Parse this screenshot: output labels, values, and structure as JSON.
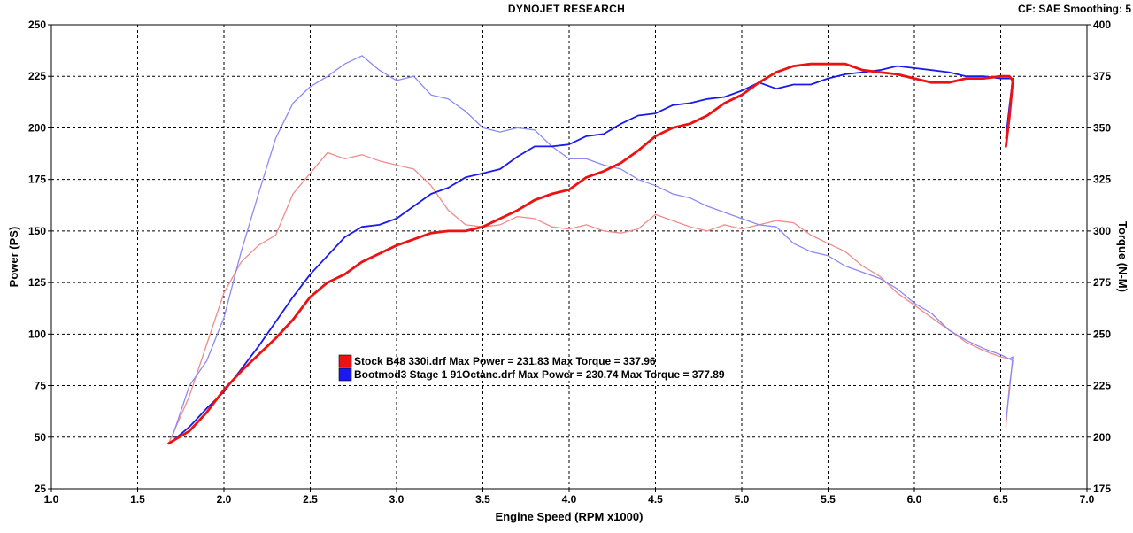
{
  "header": {
    "title": "DYNOJET RESEARCH",
    "info": "CF: SAE  Smoothing: 5"
  },
  "colors": {
    "stock": "#ee1111",
    "stock_light": "#f28a8a",
    "bootmod": "#1a1aee",
    "bootmod_light": "#8a8af4",
    "grid": "#000000"
  },
  "chart_data": {
    "type": "line",
    "title": "DYNOJET RESEARCH",
    "xlabel": "Engine Speed (RPM x1000)",
    "ylabel": "Power (PS)",
    "y2label": "Torque (N-M)",
    "xlim": [
      1.0,
      7.0
    ],
    "ylim": [
      25,
      250
    ],
    "y2lim": [
      175,
      400
    ],
    "x_ticks": [
      "1.0",
      "1.5",
      "2.0",
      "2.5",
      "3.0",
      "3.5",
      "4.0",
      "4.5",
      "5.0",
      "5.5",
      "6.0",
      "6.5",
      "7.0"
    ],
    "y_ticks": [
      "25",
      "50",
      "75",
      "100",
      "125",
      "150",
      "175",
      "200",
      "225",
      "250"
    ],
    "y2_ticks": [
      "175",
      "200",
      "225",
      "250",
      "275",
      "300",
      "325",
      "350",
      "375",
      "400"
    ],
    "grid": true,
    "legend_position": "center-left",
    "legend": [
      {
        "name": "Stock B48 330i.drf",
        "text": "Stock B48 330i.drf Max Power = 231.83 Max Torque = 337.96"
      },
      {
        "name": "Bootmod3 Stage 1 91Octane.drf",
        "text": "Bootmod3 Stage 1 91Octane.drf Max Power = 230.74 Max Torque = 377.89"
      }
    ],
    "series": [
      {
        "name": "Stock B48 330i.drf",
        "quantity": "Power (PS)",
        "axis": "left",
        "x": [
          1.68,
          1.8,
          1.9,
          2.0,
          2.1,
          2.2,
          2.3,
          2.4,
          2.5,
          2.6,
          2.7,
          2.8,
          2.9,
          3.0,
          3.1,
          3.2,
          3.3,
          3.4,
          3.5,
          3.6,
          3.7,
          3.8,
          3.9,
          4.0,
          4.1,
          4.2,
          4.3,
          4.4,
          4.5,
          4.6,
          4.7,
          4.8,
          4.9,
          5.0,
          5.1,
          5.2,
          5.3,
          5.4,
          5.5,
          5.6,
          5.7,
          5.8,
          5.9,
          6.0,
          6.1,
          6.2,
          6.3,
          6.4,
          6.5,
          6.55,
          6.57,
          6.55,
          6.53
        ],
        "y": [
          47,
          53,
          62,
          73,
          82,
          90,
          98,
          107,
          118,
          125,
          129,
          135,
          139,
          143,
          146,
          149,
          150,
          150,
          152,
          156,
          160,
          165,
          168,
          170,
          176,
          179,
          183,
          189,
          196,
          200,
          202,
          206,
          212,
          216,
          222,
          227,
          230,
          231,
          231,
          231,
          228,
          227,
          226,
          224,
          222,
          222,
          224,
          224,
          225,
          225,
          223,
          205,
          191
        ]
      },
      {
        "name": "Stock B48 330i.drf",
        "quantity": "Torque (N-M)",
        "axis": "right",
        "x": [
          1.68,
          1.8,
          1.9,
          2.0,
          2.1,
          2.2,
          2.3,
          2.4,
          2.5,
          2.6,
          2.7,
          2.8,
          2.9,
          3.0,
          3.1,
          3.2,
          3.3,
          3.4,
          3.5,
          3.6,
          3.7,
          3.8,
          3.9,
          4.0,
          4.1,
          4.2,
          4.3,
          4.4,
          4.5,
          4.6,
          4.7,
          4.8,
          4.9,
          5.0,
          5.1,
          5.2,
          5.3,
          5.4,
          5.5,
          5.6,
          5.7,
          5.8,
          5.9,
          6.0,
          6.1,
          6.2,
          6.3,
          6.4,
          6.5,
          6.55,
          6.57,
          6.55,
          6.53
        ],
        "y": [
          197,
          220,
          245,
          270,
          285,
          293,
          298,
          318,
          328,
          338,
          335,
          337,
          334,
          332,
          330,
          322,
          310,
          303,
          302,
          303,
          307,
          306,
          302,
          301,
          303,
          300,
          299,
          301,
          308,
          305,
          302,
          300,
          303,
          301,
          303,
          305,
          304,
          298,
          294,
          290,
          283,
          278,
          270,
          264,
          258,
          252,
          246,
          242,
          239,
          238,
          237,
          225,
          205
        ]
      },
      {
        "name": "Bootmod3 Stage 1 91Octane.drf",
        "quantity": "Power (PS)",
        "axis": "left",
        "x": [
          1.7,
          1.8,
          1.9,
          2.0,
          2.1,
          2.2,
          2.3,
          2.4,
          2.5,
          2.6,
          2.7,
          2.8,
          2.9,
          3.0,
          3.1,
          3.2,
          3.3,
          3.4,
          3.5,
          3.6,
          3.7,
          3.8,
          3.9,
          4.0,
          4.1,
          4.2,
          4.3,
          4.4,
          4.5,
          4.6,
          4.7,
          4.8,
          4.9,
          5.0,
          5.1,
          5.2,
          5.3,
          5.4,
          5.5,
          5.6,
          5.7,
          5.8,
          5.9,
          6.0,
          6.1,
          6.2,
          6.3,
          6.4,
          6.5,
          6.55,
          6.57,
          6.55,
          6.53
        ],
        "y": [
          48,
          55,
          64,
          72,
          83,
          94,
          106,
          118,
          129,
          138,
          147,
          152,
          153,
          156,
          162,
          168,
          171,
          176,
          178,
          180,
          186,
          191,
          191,
          192,
          196,
          197,
          202,
          206,
          207,
          211,
          212,
          214,
          215,
          218,
          222,
          219,
          221,
          221,
          224,
          226,
          227,
          228,
          230,
          229,
          228,
          227,
          225,
          225,
          224,
          224,
          224,
          210,
          195
        ]
      },
      {
        "name": "Bootmod3 Stage 1 91Octane.drf",
        "quantity": "Torque (N-M)",
        "axis": "right",
        "x": [
          1.7,
          1.8,
          1.9,
          2.0,
          2.1,
          2.2,
          2.3,
          2.4,
          2.5,
          2.6,
          2.7,
          2.8,
          2.9,
          3.0,
          3.1,
          3.2,
          3.3,
          3.4,
          3.5,
          3.6,
          3.7,
          3.8,
          3.9,
          4.0,
          4.1,
          4.2,
          4.3,
          4.4,
          4.5,
          4.6,
          4.7,
          4.8,
          4.9,
          5.0,
          5.1,
          5.2,
          5.3,
          5.4,
          5.5,
          5.6,
          5.7,
          5.8,
          5.9,
          6.0,
          6.1,
          6.2,
          6.3,
          6.4,
          6.5,
          6.55,
          6.57,
          6.55,
          6.53
        ],
        "y": [
          200,
          225,
          237,
          258,
          290,
          318,
          345,
          362,
          370,
          375,
          381,
          385,
          378,
          373,
          375,
          366,
          364,
          358,
          350,
          348,
          350,
          349,
          341,
          335,
          335,
          332,
          330,
          325,
          322,
          318,
          316,
          312,
          309,
          306,
          303,
          302,
          294,
          290,
          288,
          283,
          280,
          277,
          272,
          265,
          260,
          252,
          247,
          243,
          240,
          238,
          239,
          222,
          208
        ]
      }
    ]
  }
}
